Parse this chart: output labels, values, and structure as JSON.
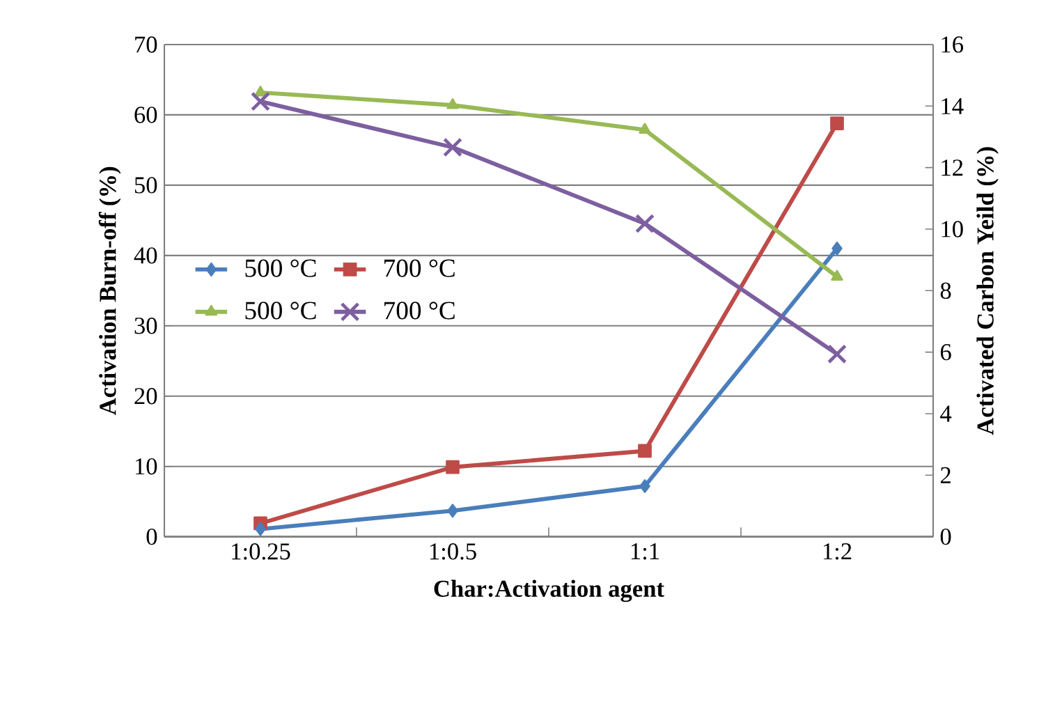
{
  "chart_data": {
    "type": "line",
    "xlabel": "Char:Activation  agent",
    "ylabel": "Activation  Burn-off  (%)",
    "y2label": "Activated  Carbon  Yeild  (%)",
    "categories": [
      "1:0.25",
      "1:0.5",
      "1:1",
      "1:2"
    ],
    "series": [
      {
        "name": "500 °C",
        "color": "#4a7ebb",
        "marker": "diamond",
        "values": [
          1.1,
          3.7,
          7.2,
          41.0
        ]
      },
      {
        "name": "700 °C",
        "color": "#be4b48",
        "marker": "square",
        "values": [
          1.9,
          9.9,
          12.2,
          58.8
        ]
      },
      {
        "name": "500 °C",
        "color": "#98b954",
        "marker": "triangle",
        "axis": "y2",
        "values": [
          14.44,
          14.03,
          13.23,
          8.45
        ]
      },
      {
        "name": "700 °C",
        "color": "#7d5fa0",
        "marker": "cross",
        "axis": "y2",
        "values": [
          14.15,
          12.66,
          10.18,
          5.94
        ]
      }
    ],
    "ylim": [
      0,
      70
    ],
    "yticks": [
      0,
      10,
      20,
      30,
      40,
      50,
      60,
      70
    ],
    "y2lim": [
      0,
      16
    ],
    "y2ticks": [
      0,
      2,
      4,
      6,
      8,
      10,
      12,
      14,
      16
    ],
    "grid": "y",
    "legend": "left",
    "line_style": "solid"
  }
}
